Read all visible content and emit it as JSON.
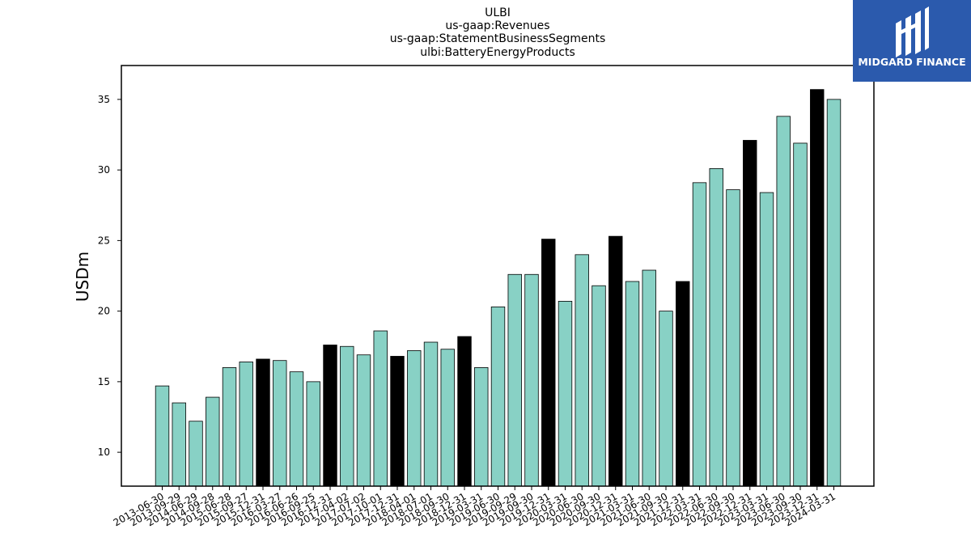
{
  "header": {
    "title_lines": [
      "ULBI",
      "us-gaap:Revenues",
      "us-gaap:StatementBusinessSegments",
      "ulbi:BatteryEnergyProducts"
    ]
  },
  "logo": {
    "text": "MIDGARD FINANCE",
    "background": "#2b5aad"
  },
  "chart_data": {
    "type": "bar",
    "title": "ULBI\nus-gaap:Revenues\nus-gaap:StatementBusinessSegments\nulbi:BatteryEnergyProducts",
    "xlabel": "",
    "ylabel": "USDm",
    "ylim": [
      7.6,
      37.4
    ],
    "yticks": [
      10,
      15,
      20,
      25,
      30,
      35
    ],
    "grid": false,
    "legend": "none",
    "colors": {
      "quarter": "#88d1c5",
      "year_end": "#000000",
      "edge": "#000000"
    },
    "categories": [
      "2013-06-30",
      "2013-09-29",
      "2014-06-29",
      "2014-09-28",
      "2015-06-28",
      "2015-09-27",
      "2015-12-31",
      "2016-03-27",
      "2016-06-26",
      "2016-09-25",
      "2016-12-31",
      "2017-04-02",
      "2017-07-02",
      "2017-10-01",
      "2017-12-31",
      "2018-04-01",
      "2018-07-01",
      "2018-09-30",
      "2018-12-31",
      "2019-03-31",
      "2019-06-30",
      "2019-09-29",
      "2019-09-30",
      "2019-12-31",
      "2020-03-31",
      "2020-06-30",
      "2020-09-30",
      "2020-12-31",
      "2021-03-31",
      "2021-06-30",
      "2021-09-30",
      "2021-12-31",
      "2022-03-31",
      "2022-06-30",
      "2022-09-30",
      "2022-12-31",
      "2023-03-31",
      "2023-06-30",
      "2023-09-30",
      "2023-12-31",
      "2024-03-31"
    ],
    "values": [
      14.7,
      13.5,
      12.2,
      13.9,
      16.0,
      16.4,
      16.6,
      16.5,
      15.7,
      15.0,
      17.6,
      17.5,
      16.9,
      18.6,
      16.8,
      17.2,
      17.8,
      17.3,
      18.2,
      16.0,
      20.3,
      22.6,
      22.6,
      25.1,
      20.7,
      24.0,
      21.8,
      25.3,
      22.1,
      22.9,
      20.0,
      22.1,
      29.1,
      30.1,
      28.6,
      32.1,
      28.4,
      33.8,
      31.9,
      35.7,
      35.0
    ],
    "highlight": [
      false,
      false,
      false,
      false,
      false,
      false,
      true,
      false,
      false,
      false,
      true,
      false,
      false,
      false,
      true,
      false,
      false,
      false,
      true,
      false,
      false,
      false,
      false,
      true,
      false,
      false,
      false,
      true,
      false,
      false,
      false,
      true,
      false,
      false,
      false,
      true,
      false,
      false,
      false,
      true,
      false
    ]
  }
}
